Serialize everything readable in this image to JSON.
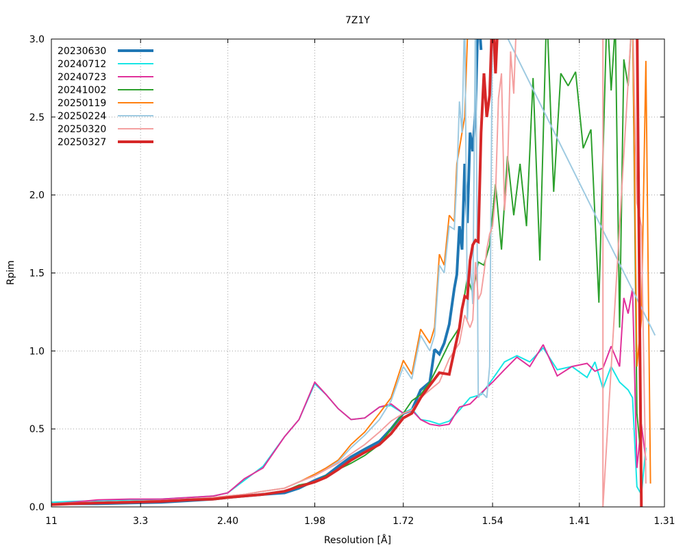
{
  "chart_data": {
    "type": "line",
    "title": "7Z1Y",
    "xlabel": "Resolution [Å]",
    "ylabel": "Rpim",
    "x_scale": "1/d^2",
    "xlim": [
      11,
      1.31
    ],
    "ylim": [
      0,
      3.0
    ],
    "x_ticks": [
      "11",
      "3.3",
      "2.40",
      "1.98",
      "1.72",
      "1.54",
      "1.41",
      "1.31"
    ],
    "y_ticks": [
      "0.0",
      "0.5",
      "1.0",
      "1.5",
      "2.0",
      "2.5",
      "3.0"
    ],
    "grid": true,
    "legend_position": "top-left",
    "series": [
      {
        "name": "20230630",
        "color": "#1f77b4",
        "width": 4,
        "x": [
          11,
          6,
          4.4,
          3.5,
          3.0,
          2.7,
          2.5,
          2.4,
          2.3,
          2.2,
          2.1,
          2.04,
          1.98,
          1.94,
          1.9,
          1.86,
          1.82,
          1.78,
          1.75,
          1.72,
          1.7,
          1.68,
          1.66,
          1.65,
          1.64,
          1.63,
          1.62,
          1.61,
          1.605,
          1.6,
          1.595,
          1.59,
          1.585,
          1.58,
          1.575,
          1.57,
          1.565,
          1.56
        ],
        "y": [
          0.02,
          0.02,
          0.02,
          0.025,
          0.03,
          0.04,
          0.05,
          0.06,
          0.07,
          0.08,
          0.09,
          0.12,
          0.17,
          0.2,
          0.26,
          0.32,
          0.37,
          0.42,
          0.5,
          0.6,
          0.62,
          0.75,
          0.8,
          1.01,
          0.98,
          1.05,
          1.17,
          1.4,
          1.49,
          1.8,
          1.65,
          2.2,
          1.82,
          2.4,
          2.28,
          2.55,
          3.2,
          2.93
        ]
      },
      {
        "name": "20240712",
        "color": "#17e5e5",
        "width": 2,
        "x": [
          11,
          6,
          4.4,
          3.5,
          3.0,
          2.7,
          2.5,
          2.4,
          2.3,
          2.2,
          2.1,
          2.04,
          1.98,
          1.94,
          1.9,
          1.86,
          1.82,
          1.78,
          1.75,
          1.72,
          1.7,
          1.68,
          1.66,
          1.64,
          1.62,
          1.6,
          1.58,
          1.56,
          1.54,
          1.52,
          1.5,
          1.48,
          1.46,
          1.44,
          1.42,
          1.4,
          1.39,
          1.38,
          1.37,
          1.36,
          1.35,
          1.345,
          1.34,
          1.335,
          1.33
        ],
        "y": [
          0.03,
          0.035,
          0.04,
          0.045,
          0.05,
          0.06,
          0.07,
          0.09,
          0.17,
          0.26,
          0.45,
          0.56,
          0.79,
          0.72,
          0.63,
          0.56,
          0.57,
          0.64,
          0.65,
          0.6,
          0.63,
          0.56,
          0.55,
          0.53,
          0.55,
          0.62,
          0.7,
          0.72,
          0.82,
          0.93,
          0.97,
          0.93,
          1.02,
          0.88,
          0.9,
          0.83,
          0.93,
          0.76,
          0.9,
          0.8,
          0.75,
          0.7,
          0.13,
          0.08,
          0.38
        ]
      },
      {
        "name": "20240723",
        "color": "#e0309a",
        "width": 2,
        "x": [
          11,
          6,
          4.4,
          3.5,
          3.0,
          2.7,
          2.5,
          2.4,
          2.3,
          2.2,
          2.1,
          2.04,
          1.98,
          1.94,
          1.9,
          1.86,
          1.82,
          1.78,
          1.75,
          1.72,
          1.7,
          1.68,
          1.66,
          1.64,
          1.62,
          1.6,
          1.58,
          1.56,
          1.54,
          1.52,
          1.5,
          1.48,
          1.46,
          1.44,
          1.42,
          1.4,
          1.39,
          1.38,
          1.37,
          1.36,
          1.355,
          1.35,
          1.345,
          1.34,
          1.335,
          1.33
        ],
        "y": [
          0.02,
          0.03,
          0.045,
          0.05,
          0.05,
          0.06,
          0.07,
          0.09,
          0.18,
          0.25,
          0.45,
          0.56,
          0.8,
          0.72,
          0.63,
          0.56,
          0.57,
          0.64,
          0.66,
          0.6,
          0.62,
          0.56,
          0.53,
          0.52,
          0.53,
          0.64,
          0.66,
          0.73,
          0.8,
          0.88,
          0.96,
          0.9,
          1.04,
          0.84,
          0.9,
          0.92,
          0.87,
          0.89,
          1.03,
          0.9,
          1.34,
          1.24,
          1.4,
          0.25,
          0.53,
          0.3
        ]
      },
      {
        "name": "20241002",
        "color": "#2ca02c",
        "width": 2,
        "x": [
          11,
          6,
          4.4,
          3.5,
          3.0,
          2.7,
          2.5,
          2.4,
          2.3,
          2.2,
          2.1,
          2.04,
          1.98,
          1.94,
          1.9,
          1.86,
          1.82,
          1.78,
          1.75,
          1.72,
          1.7,
          1.68,
          1.66,
          1.64,
          1.62,
          1.6,
          1.585,
          1.575,
          1.565,
          1.555,
          1.545,
          1.535,
          1.525,
          1.515,
          1.505,
          1.495,
          1.485,
          1.475,
          1.465,
          1.455,
          1.445,
          1.435,
          1.425,
          1.415,
          1.405,
          1.395,
          1.385,
          1.375,
          1.37,
          1.365,
          1.36,
          1.355,
          1.35,
          1.345,
          1.34,
          1.335
        ],
        "y": [
          0.02,
          0.025,
          0.03,
          0.035,
          0.04,
          0.045,
          0.05,
          0.06,
          0.07,
          0.08,
          0.1,
          0.14,
          0.16,
          0.2,
          0.24,
          0.28,
          0.33,
          0.4,
          0.5,
          0.6,
          0.68,
          0.72,
          0.8,
          0.92,
          1.05,
          1.15,
          1.47,
          1.37,
          1.57,
          1.55,
          1.68,
          2.07,
          1.65,
          2.25,
          1.87,
          2.2,
          1.8,
          2.75,
          1.58,
          3.2,
          2.02,
          2.78,
          2.7,
          2.79,
          2.3,
          2.42,
          1.31,
          3.2,
          2.67,
          3.1,
          1.15,
          2.87,
          2.7,
          3.2,
          0.6,
          0.3
        ]
      },
      {
        "name": "20250119",
        "color": "#ff7f0e",
        "width": 2,
        "x": [
          11,
          6,
          4.4,
          3.5,
          3.0,
          2.7,
          2.5,
          2.4,
          2.3,
          2.2,
          2.1,
          2.04,
          1.98,
          1.94,
          1.9,
          1.86,
          1.82,
          1.78,
          1.75,
          1.72,
          1.7,
          1.68,
          1.66,
          1.65,
          1.64,
          1.63,
          1.62,
          1.61,
          1.605,
          1.6,
          1.595,
          1.59,
          1.585,
          1.58,
          1.345,
          1.34,
          1.335,
          1.33,
          1.325
        ],
        "y": [
          0.02,
          0.025,
          0.03,
          0.035,
          0.04,
          0.05,
          0.06,
          0.07,
          0.08,
          0.1,
          0.12,
          0.16,
          0.21,
          0.25,
          0.3,
          0.4,
          0.48,
          0.6,
          0.7,
          0.94,
          0.85,
          1.14,
          1.05,
          1.15,
          1.62,
          1.55,
          1.87,
          1.83,
          2.2,
          2.3,
          2.4,
          2.5,
          3.0,
          3.2,
          3.2,
          0.9,
          1.2,
          2.86,
          0.15
        ]
      },
      {
        "name": "20250224",
        "color": "#9ecae1",
        "width": 2,
        "x": [
          11,
          6,
          4.4,
          3.5,
          3.0,
          2.7,
          2.5,
          2.4,
          2.3,
          2.2,
          2.1,
          2.04,
          1.98,
          1.94,
          1.9,
          1.86,
          1.82,
          1.78,
          1.75,
          1.72,
          1.7,
          1.68,
          1.66,
          1.65,
          1.64,
          1.63,
          1.62,
          1.61,
          1.605,
          1.6,
          1.595,
          1.59,
          1.585,
          1.58,
          1.575,
          1.57,
          1.565,
          1.56,
          1.555,
          1.55,
          1.545,
          1.54,
          1.32
        ],
        "y": [
          0.02,
          0.025,
          0.03,
          0.035,
          0.04,
          0.05,
          0.06,
          0.07,
          0.08,
          0.1,
          0.12,
          0.16,
          0.2,
          0.24,
          0.29,
          0.38,
          0.46,
          0.56,
          0.68,
          0.9,
          0.82,
          1.1,
          1.0,
          1.1,
          1.55,
          1.5,
          1.8,
          1.78,
          2.1,
          2.6,
          2.4,
          3.2,
          1.2,
          1.6,
          1.3,
          3.2,
          0.7,
          0.73,
          0.72,
          0.7,
          0.9,
          3.2,
          1.1
        ]
      },
      {
        "name": "20250320",
        "color": "#f4a0a0",
        "width": 2,
        "x": [
          11,
          6,
          4.4,
          3.5,
          3.0,
          2.7,
          2.5,
          2.4,
          2.3,
          2.2,
          2.1,
          2.04,
          1.98,
          1.94,
          1.9,
          1.86,
          1.82,
          1.78,
          1.75,
          1.72,
          1.7,
          1.68,
          1.66,
          1.64,
          1.62,
          1.6,
          1.59,
          1.58,
          1.575,
          1.57,
          1.565,
          1.56,
          1.555,
          1.55,
          1.545,
          1.54,
          1.535,
          1.53,
          1.525,
          1.52,
          1.515,
          1.51,
          1.505,
          1.5,
          1.495,
          1.38,
          1.38,
          1.345,
          1.34,
          1.335,
          1.33
        ],
        "y": [
          0.02,
          0.025,
          0.03,
          0.035,
          0.04,
          0.05,
          0.06,
          0.07,
          0.08,
          0.1,
          0.12,
          0.16,
          0.2,
          0.24,
          0.28,
          0.34,
          0.4,
          0.48,
          0.55,
          0.6,
          0.62,
          0.7,
          0.75,
          0.8,
          0.95,
          1.05,
          1.23,
          1.15,
          1.2,
          1.57,
          1.33,
          1.37,
          1.5,
          1.65,
          1.75,
          1.8,
          2.0,
          2.62,
          2.78,
          1.9,
          2.15,
          2.92,
          2.65,
          3.2,
          3.2,
          3.2,
          0.0,
          3.2,
          1.95,
          1.8,
          0.15
        ]
      },
      {
        "name": "20250327",
        "color": "#d62728",
        "width": 4,
        "x": [
          11,
          6,
          4.4,
          3.5,
          3.0,
          2.7,
          2.5,
          2.4,
          2.3,
          2.2,
          2.1,
          2.04,
          1.98,
          1.94,
          1.9,
          1.86,
          1.82,
          1.78,
          1.75,
          1.72,
          1.7,
          1.68,
          1.66,
          1.64,
          1.62,
          1.61,
          1.6,
          1.595,
          1.59,
          1.585,
          1.58,
          1.575,
          1.57,
          1.565,
          1.56,
          1.555,
          1.55,
          1.545,
          1.54,
          1.535,
          1.53,
          1.34,
          1.335
        ],
        "y": [
          0.015,
          0.02,
          0.025,
          0.03,
          0.035,
          0.045,
          0.05,
          0.06,
          0.07,
          0.08,
          0.1,
          0.13,
          0.16,
          0.19,
          0.24,
          0.3,
          0.35,
          0.4,
          0.47,
          0.57,
          0.6,
          0.7,
          0.78,
          0.86,
          0.85,
          1.0,
          1.15,
          1.27,
          1.35,
          1.34,
          1.58,
          1.68,
          1.71,
          1.7,
          2.4,
          2.78,
          2.5,
          2.64,
          3.2,
          2.78,
          3.2,
          3.2,
          0.0
        ]
      }
    ]
  }
}
